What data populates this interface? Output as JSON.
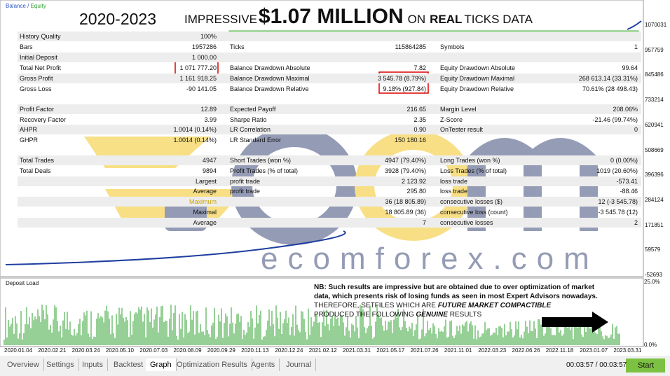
{
  "header": {
    "years": "2020-2023",
    "impressive": "IMPRESSIVE",
    "amount": "$1.07 MILLION",
    "on": "ON",
    "real": "REAL",
    "ticks_data": "TICKS DATA"
  },
  "legend": [
    "Balance",
    "Equity"
  ],
  "rows": [
    {
      "cells": [
        {
          "label": "History Quality",
          "value": "100%"
        }
      ]
    },
    {
      "cells": [
        {
          "label": "Bars",
          "value": "1957286"
        },
        {
          "label": "Ticks",
          "value": "115864285"
        },
        {
          "label": "Symbols",
          "value": "1"
        }
      ]
    },
    {
      "cells": [
        {
          "label": "Initial Deposit",
          "value": "1 000.00"
        }
      ]
    },
    {
      "cells": [
        {
          "label": "Total Net Profit",
          "value": "1 071 777.20"
        },
        {
          "label": "Balance Drawdown Absolute",
          "value": "7.82"
        },
        {
          "label": "Equity Drawdown Absolute",
          "value": "99.64"
        }
      ]
    },
    {
      "cells": [
        {
          "label": "Gross Profit",
          "value": "1 161 918.25"
        },
        {
          "label": "Balance Drawdown Maximal",
          "value": "3 545.78 (8.79%)"
        },
        {
          "label": "Equity Drawdown Maximal",
          "value": "268 613.14 (33.31%)"
        }
      ]
    },
    {
      "cells": [
        {
          "label": "Gross Loss",
          "value": "-90 141.05"
        },
        {
          "label": "Balance Drawdown Relative",
          "value": "9.18% (927.84)"
        },
        {
          "label": "Equity Drawdown Relative",
          "value": "70.61% (28 498.43)"
        }
      ]
    },
    {
      "cells": [
        {
          "label": "Profit Factor",
          "value": "12.89"
        },
        {
          "label": "Expected Payoff",
          "value": "216.65"
        },
        {
          "label": "Margin Level",
          "value": "208.06%"
        }
      ]
    },
    {
      "cells": [
        {
          "label": "Recovery Factor",
          "value": "3.99"
        },
        {
          "label": "Sharpe Ratio",
          "value": "2.35"
        },
        {
          "label": "Z-Score",
          "value": "-21.46 (99.74%)"
        }
      ]
    },
    {
      "cells": [
        {
          "label": "AHPR",
          "value": "1.0014 (0.14%)"
        },
        {
          "label": "LR Correlation",
          "value": "0.90"
        },
        {
          "label": "OnTester result",
          "value": "0"
        }
      ]
    },
    {
      "cells": [
        {
          "label": "GHPR",
          "value": "1.0014 (0.14%)"
        },
        {
          "label": "LR Standard Error",
          "value": "150 180.16"
        }
      ]
    },
    {
      "cells": [
        {
          "label": "Total Trades",
          "value": "4947"
        },
        {
          "label": "Short Trades (won %)",
          "value": "4947 (79.40%)"
        },
        {
          "label": "Long Trades (won %)",
          "value": "0 (0.00%)"
        }
      ]
    },
    {
      "cells": [
        {
          "label": "Total Deals",
          "value": "9894"
        },
        {
          "label": "Profit Trades (% of total)",
          "value": "3928 (79.40%)"
        },
        {
          "label": "Loss Trades (% of total)",
          "value": "1019 (20.60%)"
        }
      ]
    },
    {
      "cells": [
        {
          "value": "Largest"
        },
        {
          "label": "profit trade",
          "value": "2 123.92"
        },
        {
          "label": "loss trade",
          "value": "-573.41"
        }
      ]
    },
    {
      "cells": [
        {
          "value": "Average"
        },
        {
          "label": "profit trade",
          "value": "295.80"
        },
        {
          "label": "loss trade",
          "value": "-88.46"
        }
      ]
    },
    {
      "cells": [
        {
          "value": "Maximum"
        },
        {
          "value": "36 (18 805.89)"
        },
        {
          "label": "consecutive losses ($)",
          "value": "12 (-3 545.78)"
        }
      ]
    },
    {
      "cells": [
        {
          "value": "Maximal"
        },
        {
          "value": "18 805.89 (36)"
        },
        {
          "label": "consecutive loss (count)",
          "value": "-3 545.78 (12)"
        }
      ]
    },
    {
      "cells": [
        {
          "value": "Average"
        },
        {
          "value": "7"
        },
        {
          "label": "consecutive losses",
          "value": "2"
        }
      ]
    }
  ],
  "y_axis": [
    "1070031",
    "957759",
    "845486",
    "733214",
    "620941",
    "508669",
    "396396",
    "284124",
    "171851",
    "59579",
    "-52693"
  ],
  "deposit_load": {
    "title": "Deposit Load",
    "axis": [
      "25.0%",
      "0.0%"
    ]
  },
  "x_axis": [
    "2020.01.04",
    "2020.02.21",
    "2020.03.24",
    "2020.05.10",
    "2020.07.03",
    "2020.08.09",
    "2020.09.29",
    "2020.11.13",
    "2020.12.24",
    "2021.02.12",
    "2021.03.31",
    "2021.05.17",
    "2021.07.26",
    "2021.11.01",
    "2022.03.23",
    "2022.06.26",
    "2022.11.18",
    "2023.01.07",
    "2023.03.31"
  ],
  "watermark": "ecomforex.com",
  "note": {
    "line1": "NB: Such results are impressive but are obtained due to over optimization of market data, which presents risk of losing funds as seen in most Expert Advisors nowadays.",
    "line2a": "THEREFORE, SETFILES WHICH ARE ",
    "line2b": "FUTURE MARKET COMPACTIBLE",
    "line3a": "PRODUCED THE FOLLOWING ",
    "line3b": "GENUINE",
    "line3c": " RESULTS"
  },
  "tabs": [
    "Overview",
    "Settings",
    "Inputs",
    "Backtest",
    "Graph",
    "Optimization Results",
    "Agents",
    "Journal"
  ],
  "timer": "00:03:57 / 00:03:57",
  "start": "Start"
}
